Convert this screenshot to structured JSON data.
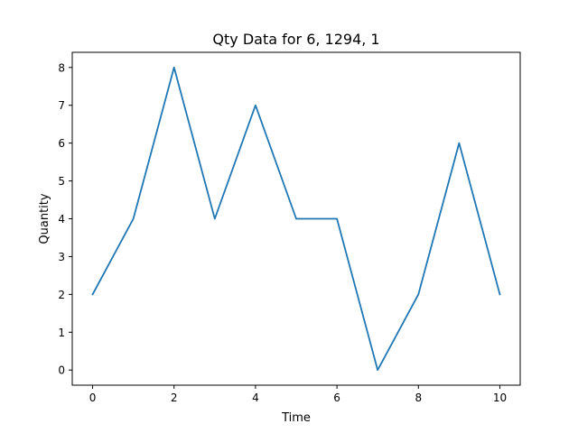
{
  "chart_data": {
    "type": "line",
    "title": "Qty Data for 6, 1294, 1",
    "xlabel": "Time",
    "ylabel": "Quantity",
    "x": [
      0,
      1,
      2,
      3,
      4,
      5,
      6,
      7,
      8,
      9,
      10
    ],
    "series": [
      {
        "values": [
          2,
          4,
          8,
          4,
          7,
          4,
          4,
          0,
          2,
          6,
          2
        ],
        "color": "#1f77b4"
      }
    ],
    "xlim": [
      -0.5,
      10.5
    ],
    "ylim": [
      -0.4,
      8.4
    ],
    "xticks": [
      0,
      2,
      4,
      6,
      8,
      10
    ],
    "yticks": [
      0,
      1,
      2,
      3,
      4,
      5,
      6,
      7,
      8
    ],
    "grid": false,
    "legend": "none"
  }
}
